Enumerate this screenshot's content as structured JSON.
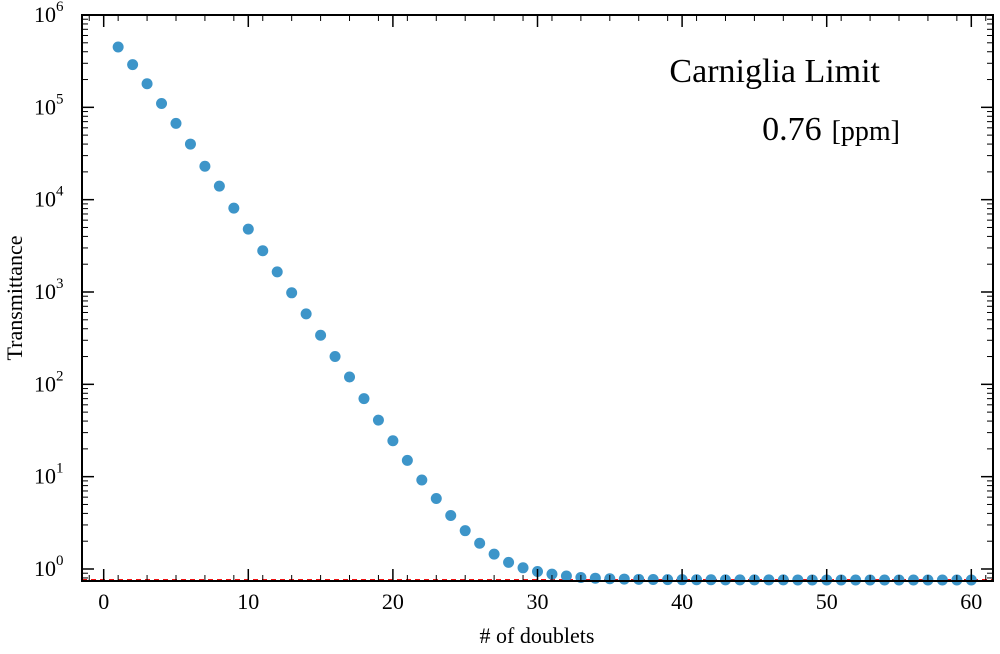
{
  "chart_data": {
    "type": "scatter",
    "title": "",
    "xlabel": "# of doublets",
    "ylabel": "Transmittance",
    "xlim": [
      -1.5,
      61.5
    ],
    "ylim_log10": [
      -0.13,
      6
    ],
    "yscale": "log",
    "x_ticks": [
      0,
      10,
      20,
      30,
      40,
      50,
      60
    ],
    "y_tick_base": "10",
    "y_tick_exponents": [
      "0",
      "1",
      "2",
      "3",
      "4",
      "5",
      "6"
    ],
    "grid": false,
    "annotations": {
      "line1": "Carniglia Limit",
      "line2_value": "0.76",
      "line2_unit": "[ppm]"
    },
    "reference_line": {
      "y": 0.76,
      "color": "#ee1111",
      "style": "dashed"
    },
    "series": [
      {
        "color": "#3d95c9",
        "x": [
          1,
          2,
          3,
          4,
          5,
          6,
          7,
          8,
          9,
          10,
          11,
          12,
          13,
          14,
          15,
          16,
          17,
          18,
          19,
          20,
          21,
          22,
          23,
          24,
          25,
          26,
          27,
          28,
          29,
          30,
          31,
          32,
          33,
          34,
          35,
          36,
          37,
          38,
          39,
          40,
          41,
          42,
          43,
          44,
          45,
          46,
          47,
          48,
          49,
          50,
          51,
          52,
          53,
          54,
          55,
          56,
          57,
          58,
          59,
          60
        ],
        "y": [
          450000,
          290000,
          180000,
          110000,
          67000,
          40000,
          23000,
          14000,
          8100,
          4800,
          2800,
          1650,
          980,
          580,
          340,
          200,
          120,
          70,
          41,
          24.5,
          15,
          9.2,
          5.8,
          3.8,
          2.6,
          1.9,
          1.45,
          1.18,
          1.03,
          0.94,
          0.88,
          0.84,
          0.81,
          0.795,
          0.785,
          0.778,
          0.773,
          0.77,
          0.768,
          0.766,
          0.765,
          0.764,
          0.763,
          0.763,
          0.762,
          0.762,
          0.762,
          0.761,
          0.761,
          0.761,
          0.761,
          0.76,
          0.76,
          0.76,
          0.76,
          0.76,
          0.76,
          0.76,
          0.76,
          0.76
        ]
      }
    ]
  }
}
